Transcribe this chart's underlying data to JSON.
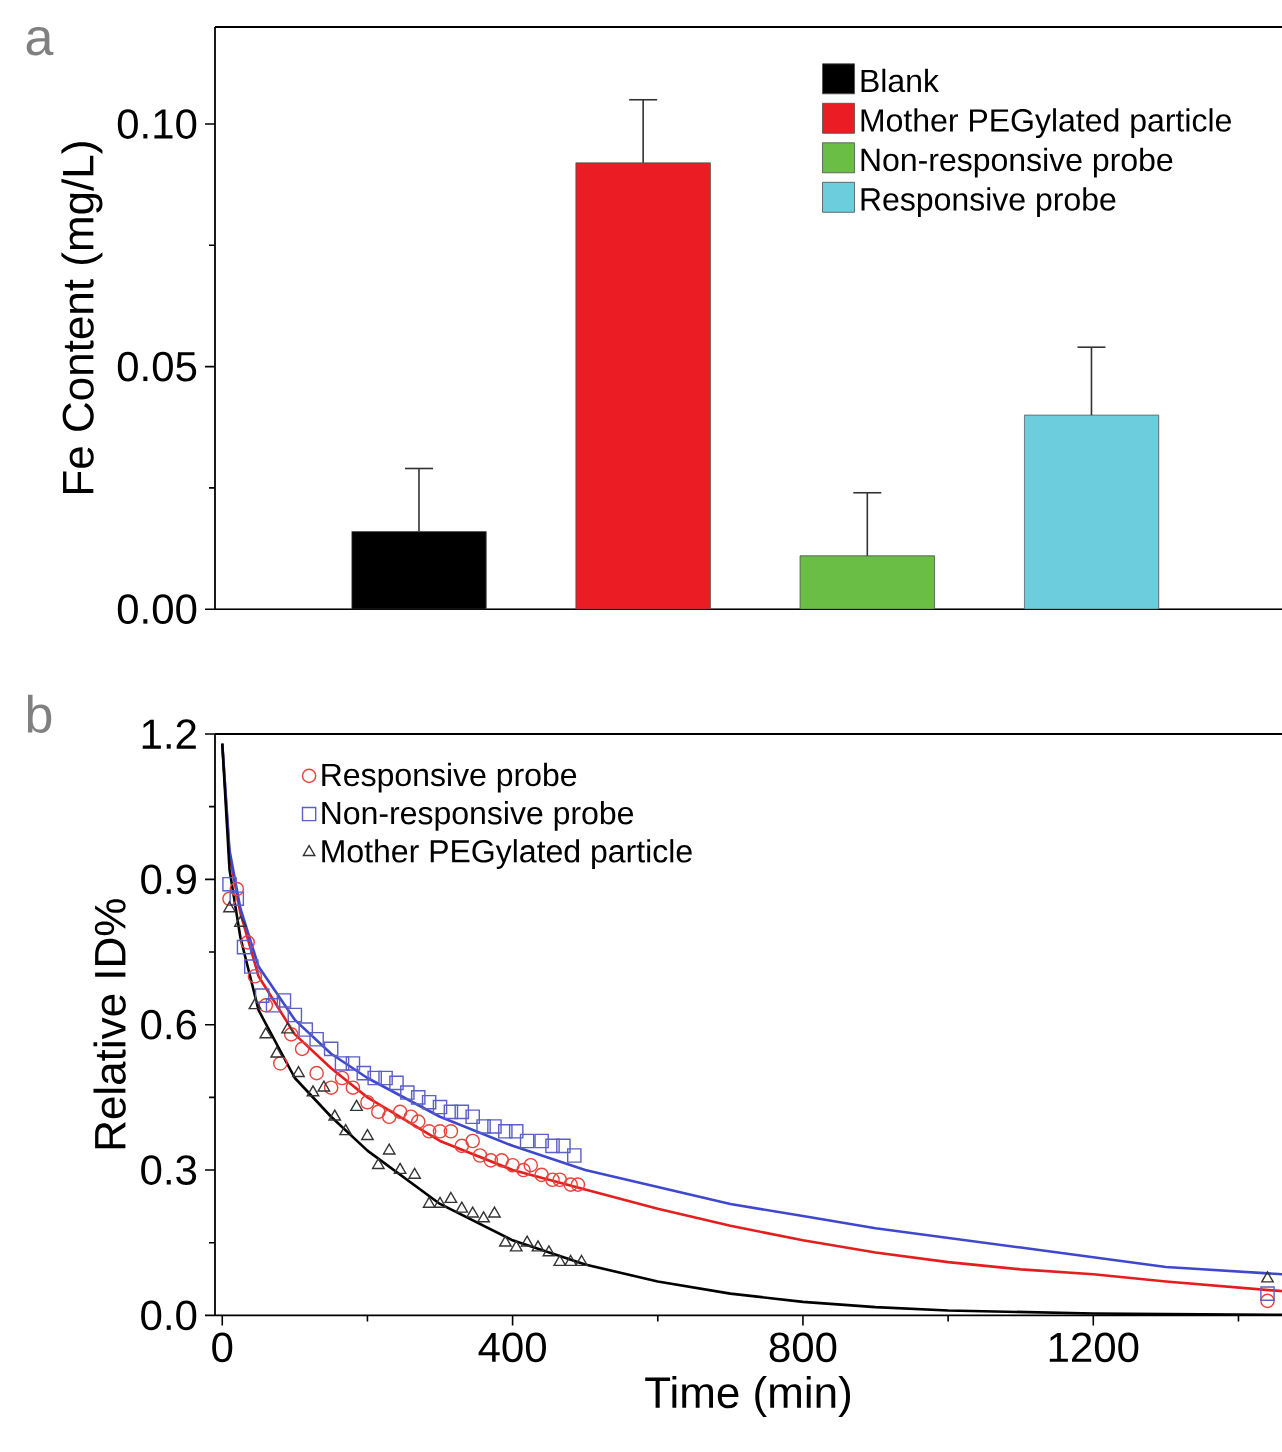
{
  "chart_data": [
    {
      "type": "bar",
      "title": "a",
      "ylabel": "Fe Content (mg/L)",
      "categories": [
        null,
        null,
        null,
        null
      ],
      "series": [
        {
          "name": "Blank",
          "color": "#000000",
          "values": [
            0.016,
            null,
            null,
            null
          ],
          "errors": [
            [
              0.016,
              0.029
            ],
            null,
            null,
            null
          ]
        },
        {
          "name": "Mother PEGylated particle",
          "color": "#ec1c24",
          "values": [
            null,
            0.092,
            null,
            null
          ],
          "errors": [
            null,
            [
              0.092,
              0.105
            ],
            null,
            null
          ]
        },
        {
          "name": "Non-responsive probe",
          "color": "#6abd45",
          "values": [
            null,
            null,
            0.011,
            null
          ],
          "errors": [
            null,
            null,
            [
              0.011,
              0.024
            ],
            null
          ]
        },
        {
          "name": "Responsive probe",
          "color": "#6ccddc",
          "values": [
            null,
            null,
            null,
            0.04
          ],
          "errors": [
            null,
            null,
            null,
            [
              0.04,
              0.054
            ]
          ]
        }
      ],
      "ylim": [
        0,
        0.12
      ],
      "yticks": [
        {
          "value": 0,
          "label": "0.00"
        },
        {
          "value": 0.025,
          "label": null
        },
        {
          "value": 0.05,
          "label": "0.05"
        },
        {
          "value": 0.075,
          "label": null
        },
        {
          "value": 0.1,
          "label": "0.10"
        }
      ],
      "legend": "top right",
      "grid": false
    },
    {
      "type": "scatter",
      "title": "b",
      "xlabel": "Time (min)",
      "ylabel": "Relative ID%",
      "series": [
        {
          "name": "Responsive probe",
          "color": "#e8423a",
          "marker": "circle",
          "x": [
            10,
            20,
            35,
            45,
            60,
            80,
            95,
            110,
            130,
            150,
            165,
            180,
            200,
            215,
            230,
            245,
            260,
            270,
            285,
            300,
            315,
            330,
            345,
            355,
            370,
            385,
            400,
            415,
            425,
            440,
            455,
            465,
            480,
            490,
            1440
          ],
          "values": [
            0.86,
            0.88,
            0.77,
            0.7,
            0.64,
            0.52,
            0.58,
            0.55,
            0.5,
            0.47,
            0.49,
            0.47,
            0.44,
            0.42,
            0.41,
            0.42,
            0.41,
            0.4,
            0.38,
            0.38,
            0.38,
            0.35,
            0.36,
            0.33,
            0.32,
            0.32,
            0.31,
            0.3,
            0.31,
            0.29,
            0.28,
            0.28,
            0.27,
            0.27,
            0.03
          ]
        },
        {
          "name": "Non-responsive probe",
          "color": "#5b5fc7",
          "marker": "square",
          "x": [
            10,
            20,
            30,
            40,
            55,
            70,
            85,
            100,
            115,
            130,
            150,
            165,
            180,
            195,
            210,
            225,
            240,
            255,
            270,
            285,
            300,
            315,
            330,
            345,
            360,
            375,
            390,
            405,
            420,
            440,
            455,
            470,
            485,
            1440
          ],
          "values": [
            0.89,
            0.86,
            0.76,
            0.72,
            0.66,
            0.64,
            0.65,
            0.62,
            0.59,
            0.57,
            0.55,
            0.52,
            0.52,
            0.5,
            0.49,
            0.49,
            0.48,
            0.46,
            0.45,
            0.44,
            0.43,
            0.42,
            0.42,
            0.41,
            0.39,
            0.39,
            0.38,
            0.38,
            0.36,
            0.36,
            0.35,
            0.35,
            0.33,
            0.045
          ]
        },
        {
          "name": "Mother PEGylated particle",
          "color": "#333333",
          "marker": "triangle",
          "x": [
            10,
            25,
            45,
            60,
            75,
            90,
            105,
            125,
            140,
            155,
            170,
            185,
            200,
            215,
            230,
            245,
            265,
            285,
            300,
            315,
            330,
            345,
            360,
            375,
            390,
            405,
            420,
            435,
            450,
            465,
            480,
            495,
            1440
          ],
          "values": [
            0.84,
            0.81,
            0.64,
            0.58,
            0.54,
            0.59,
            0.5,
            0.46,
            0.47,
            0.41,
            0.38,
            0.43,
            0.37,
            0.31,
            0.34,
            0.3,
            0.29,
            0.23,
            0.23,
            0.24,
            0.22,
            0.21,
            0.2,
            0.21,
            0.15,
            0.14,
            0.15,
            0.14,
            0.13,
            0.11,
            0.11,
            0.11,
            0.076
          ]
        },
        {
          "type": "line",
          "color": "#e41e1e",
          "x": [
            0,
            10,
            25,
            50,
            100,
            150,
            200,
            300,
            400,
            500,
            600,
            700,
            800,
            900,
            1000,
            1100,
            1200,
            1300,
            1460
          ],
          "values": [
            1.18,
            0.95,
            0.83,
            0.7,
            0.58,
            0.51,
            0.45,
            0.36,
            0.3,
            0.26,
            0.22,
            0.185,
            0.155,
            0.13,
            0.11,
            0.095,
            0.085,
            0.07,
            0.05
          ]
        },
        {
          "type": "line",
          "color": "#3f48cc",
          "x": [
            0,
            10,
            25,
            50,
            100,
            150,
            200,
            300,
            400,
            500,
            600,
            700,
            800,
            900,
            1000,
            1100,
            1200,
            1300,
            1460
          ],
          "values": [
            1.18,
            0.96,
            0.84,
            0.72,
            0.61,
            0.54,
            0.49,
            0.41,
            0.35,
            0.3,
            0.265,
            0.23,
            0.205,
            0.18,
            0.16,
            0.14,
            0.12,
            0.1,
            0.085
          ]
        },
        {
          "type": "line",
          "color": "#000000",
          "x": [
            0,
            10,
            25,
            50,
            100,
            150,
            200,
            300,
            400,
            500,
            600,
            700,
            800,
            900,
            1000,
            1200,
            1460
          ],
          "values": [
            1.18,
            0.92,
            0.78,
            0.63,
            0.49,
            0.41,
            0.34,
            0.23,
            0.155,
            0.105,
            0.07,
            0.045,
            0.028,
            0.017,
            0.01,
            0.004,
            0.001
          ]
        }
      ],
      "xlim": [
        -10,
        1460
      ],
      "ylim": [
        0,
        1.2
      ],
      "xticks": [
        0,
        {
          "value": 200,
          "label": null
        },
        400,
        {
          "value": 600,
          "label": null
        },
        800,
        {
          "value": 1000,
          "label": null
        },
        1200,
        {
          "value": 1400,
          "label": null
        }
      ],
      "yticks": [
        {
          "value": 0,
          "label": "0.0"
        },
        {
          "value": 0.15,
          "label": null
        },
        0.3,
        {
          "value": 0.45,
          "label": null
        },
        0.6,
        {
          "value": 0.75,
          "label": null
        },
        0.9,
        {
          "value": 1.05,
          "label": null
        },
        1.2
      ],
      "legend": "top left",
      "grid": false
    }
  ]
}
